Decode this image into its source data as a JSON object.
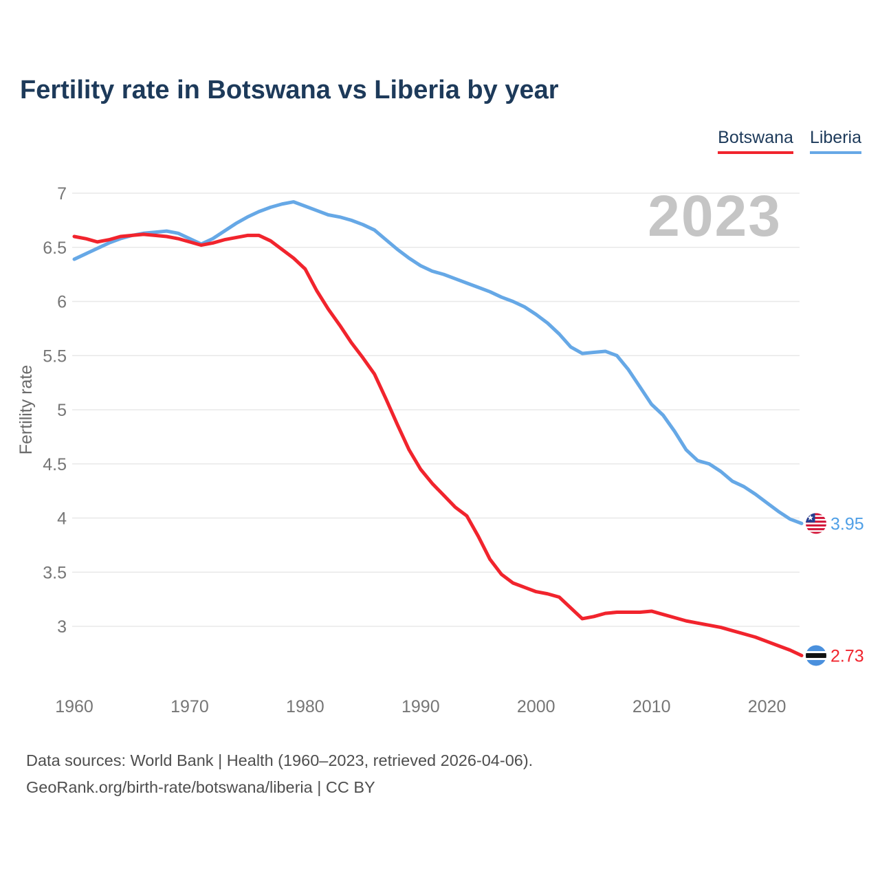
{
  "header": {
    "title": "Fertility rate in Botswana vs Liberia by year"
  },
  "legend": [
    {
      "label": "Botswana",
      "color": "#f1242d"
    },
    {
      "label": "Liberia",
      "color": "#66a8e6"
    }
  ],
  "watermark": "2023",
  "chart_data": {
    "type": "line",
    "title": "Fertility rate in Botswana vs Liberia by year",
    "xlabel": "",
    "ylabel": "Fertility rate",
    "grid": true,
    "legend_position": "top-right",
    "xlim": [
      1960,
      2023
    ],
    "ylim": [
      2.5,
      7.0
    ],
    "xticks": [
      1960,
      1970,
      1980,
      1990,
      2000,
      2010,
      2020
    ],
    "yticks": [
      3,
      3.5,
      4,
      4.5,
      5,
      5.5,
      6,
      6.5,
      7
    ],
    "x": [
      1960,
      1961,
      1962,
      1963,
      1964,
      1965,
      1966,
      1967,
      1968,
      1969,
      1970,
      1971,
      1972,
      1973,
      1974,
      1975,
      1976,
      1977,
      1978,
      1979,
      1980,
      1981,
      1982,
      1983,
      1984,
      1985,
      1986,
      1987,
      1988,
      1989,
      1990,
      1991,
      1992,
      1993,
      1994,
      1995,
      1996,
      1997,
      1998,
      1999,
      2000,
      2001,
      2002,
      2003,
      2004,
      2005,
      2006,
      2007,
      2008,
      2009,
      2010,
      2011,
      2012,
      2013,
      2014,
      2015,
      2016,
      2017,
      2018,
      2019,
      2020,
      2021,
      2022,
      2023
    ],
    "series": [
      {
        "name": "Botswana",
        "color": "#f1242d",
        "values": [
          6.6,
          6.58,
          6.55,
          6.57,
          6.6,
          6.61,
          6.62,
          6.61,
          6.6,
          6.58,
          6.55,
          6.52,
          6.54,
          6.57,
          6.59,
          6.61,
          6.61,
          6.56,
          6.48,
          6.4,
          6.3,
          6.1,
          5.93,
          5.78,
          5.62,
          5.48,
          5.33,
          5.1,
          4.86,
          4.63,
          4.45,
          4.32,
          4.21,
          4.1,
          4.02,
          3.83,
          3.62,
          3.48,
          3.4,
          3.36,
          3.32,
          3.3,
          3.27,
          3.17,
          3.07,
          3.09,
          3.12,
          3.13,
          3.13,
          3.13,
          3.14,
          3.11,
          3.08,
          3.05,
          3.03,
          3.01,
          2.99,
          2.96,
          2.93,
          2.9,
          2.86,
          2.82,
          2.78,
          2.73
        ]
      },
      {
        "name": "Liberia",
        "color": "#66a8e6",
        "values": [
          6.39,
          6.44,
          6.49,
          6.54,
          6.58,
          6.61,
          6.63,
          6.64,
          6.65,
          6.63,
          6.58,
          6.53,
          6.58,
          6.65,
          6.72,
          6.78,
          6.83,
          6.87,
          6.9,
          6.92,
          6.88,
          6.84,
          6.8,
          6.78,
          6.75,
          6.71,
          6.66,
          6.57,
          6.48,
          6.4,
          6.33,
          6.28,
          6.25,
          6.21,
          6.17,
          6.13,
          6.09,
          6.04,
          6.0,
          5.95,
          5.88,
          5.8,
          5.7,
          5.58,
          5.52,
          5.53,
          5.54,
          5.5,
          5.37,
          5.21,
          5.05,
          4.95,
          4.8,
          4.63,
          4.53,
          4.5,
          4.43,
          4.34,
          4.29,
          4.22,
          4.14,
          4.06,
          3.99,
          3.95
        ]
      }
    ],
    "end_labels": [
      {
        "series": "Liberia",
        "value": "3.95",
        "y": 3.95,
        "flag": "liberia",
        "text_color": "#4f9fe6"
      },
      {
        "series": "Botswana",
        "value": "2.73",
        "y": 2.73,
        "flag": "botswana",
        "text_color": "#f1242d"
      }
    ]
  },
  "footer": {
    "line1": "Data sources: World Bank | Health (1960–2023, retrieved 2026-04-06).",
    "line2": "GeoRank.org/birth-rate/botswana/liberia | CC BY"
  }
}
